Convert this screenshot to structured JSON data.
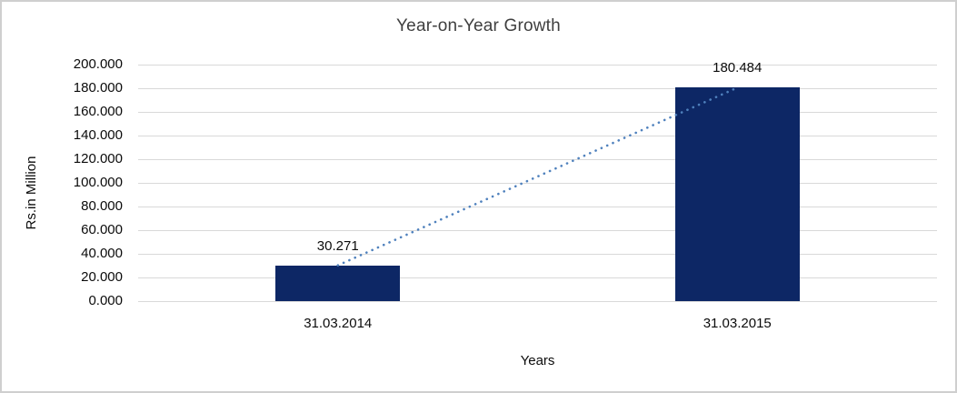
{
  "chart_data": {
    "type": "bar",
    "title": "Year-on-Year Growth",
    "xlabel": "Years",
    "ylabel": "Rs.in Million",
    "categories": [
      "31.03.2014",
      "31.03.2015"
    ],
    "values": [
      30.271,
      180.484
    ],
    "data_labels": [
      "30.271",
      "180.484"
    ],
    "ylim": [
      0,
      200
    ],
    "ytick_values": [
      0,
      20,
      40,
      60,
      80,
      100,
      120,
      140,
      160,
      180,
      200
    ],
    "ytick_labels": [
      "0.000",
      "20.000",
      "40.000",
      "60.000",
      "80.000",
      "100.000",
      "120.000",
      "140.000",
      "160.000",
      "180.000",
      "200.000"
    ],
    "grid": true,
    "legend": "none",
    "trendline": {
      "type": "linear",
      "style": "dotted",
      "connects": "bar tops"
    },
    "colors": {
      "bar": "#0d2765",
      "trendline": "#4f81bd",
      "gridline": "#d9d9d9",
      "frame_border": "#cfcfcf",
      "title_text": "#3f3f3f",
      "axis_text": "#0b0b0b",
      "background": "#ffffff"
    }
  }
}
